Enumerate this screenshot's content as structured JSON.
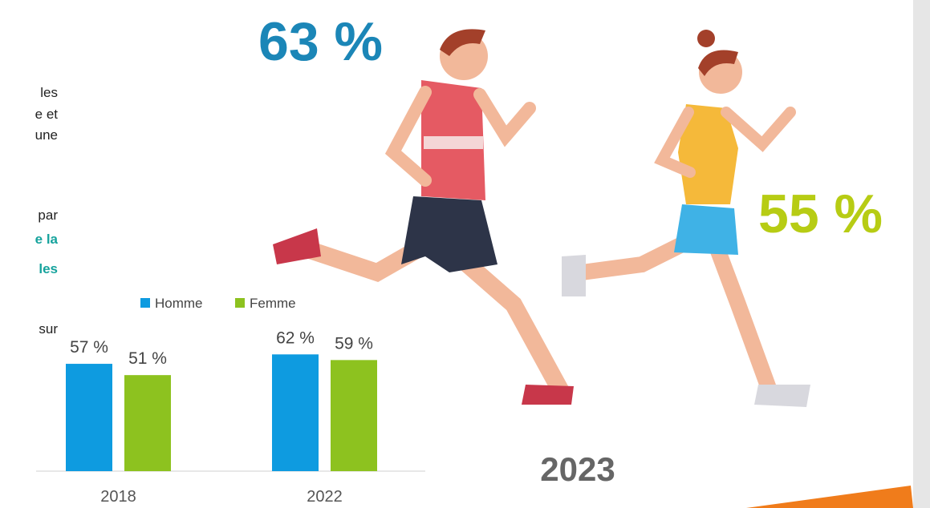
{
  "text_fragments": [
    "les",
    "e et",
    "une",
    "par",
    "e la",
    "les",
    "sur"
  ],
  "highlights": {
    "men": "63 %",
    "women": "55 %",
    "year": "2023"
  },
  "chart_data": {
    "type": "bar",
    "categories": [
      "2018",
      "2022"
    ],
    "series": [
      {
        "name": "Homme",
        "color": "#0e9be0",
        "values": [
          57,
          62
        ],
        "value_labels": [
          "57 %",
          "62 %"
        ]
      },
      {
        "name": "Femme",
        "color": "#8dc21f",
        "values": [
          51,
          59
        ],
        "value_labels": [
          "51 %",
          "59 %"
        ]
      }
    ]
  }
}
